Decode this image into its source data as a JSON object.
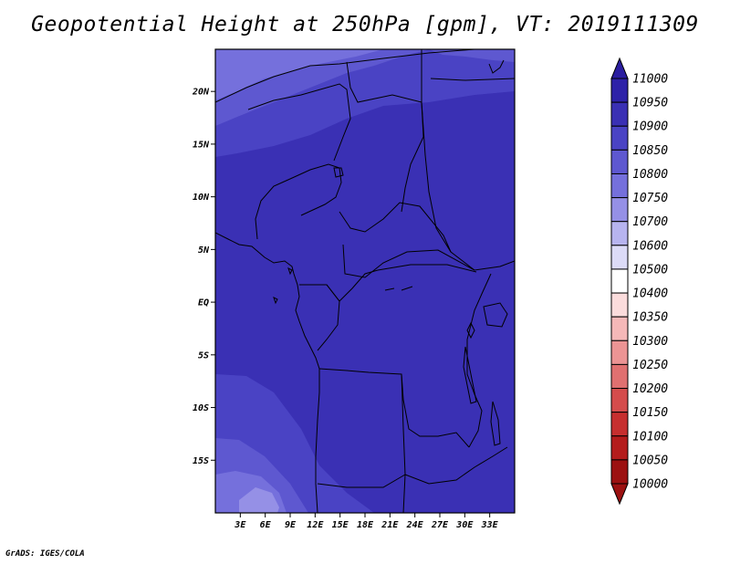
{
  "title": "Geopotential Height at 250hPa [gpm], VT: 2019111309",
  "credit": "GrADS: IGES/COLA",
  "map": {
    "lon_range": [
      0,
      36
    ],
    "lat_range": [
      -20,
      24
    ],
    "lat_ticks": [
      {
        "value": 20,
        "label": "20N"
      },
      {
        "value": 15,
        "label": "15N"
      },
      {
        "value": 10,
        "label": "10N"
      },
      {
        "value": 5,
        "label": "5N"
      },
      {
        "value": 0,
        "label": "EQ"
      },
      {
        "value": -5,
        "label": "5S"
      },
      {
        "value": -10,
        "label": "10S"
      },
      {
        "value": -15,
        "label": "15S"
      }
    ],
    "lon_ticks": [
      {
        "value": 3,
        "label": "3E"
      },
      {
        "value": 6,
        "label": "6E"
      },
      {
        "value": 9,
        "label": "9E"
      },
      {
        "value": 12,
        "label": "12E"
      },
      {
        "value": 15,
        "label": "15E"
      },
      {
        "value": 18,
        "label": "18E"
      },
      {
        "value": 21,
        "label": "21E"
      },
      {
        "value": 24,
        "label": "24E"
      },
      {
        "value": 27,
        "label": "27E"
      },
      {
        "value": 30,
        "label": "30E"
      },
      {
        "value": 33,
        "label": "33E"
      }
    ]
  },
  "colorbar": {
    "levels": [
      "11000",
      "10950",
      "10900",
      "10850",
      "10800",
      "10750",
      "10700",
      "10600",
      "10500",
      "10400",
      "10350",
      "10300",
      "10250",
      "10200",
      "10150",
      "10100",
      "10050",
      "10000"
    ],
    "colors": [
      "#2b1ea0",
      "#2e22a8",
      "#3a30b4",
      "#4a43c4",
      "#5e58d0",
      "#7570dc",
      "#9590e6",
      "#b7b4ef",
      "#dcdbf7",
      "#ffffff",
      "#fbdcdc",
      "#f5b8b8",
      "#ec9494",
      "#e07070",
      "#d44c4c",
      "#c62f2f",
      "#b41c1c",
      "#9c1111"
    ]
  },
  "field_colors": {
    "c10950": "#2e22a8",
    "c10900": "#3a30b4",
    "c10850": "#4a43c4",
    "c10800": "#5e58d0",
    "c10750": "#7570dc",
    "c10700": "#9590e6"
  }
}
